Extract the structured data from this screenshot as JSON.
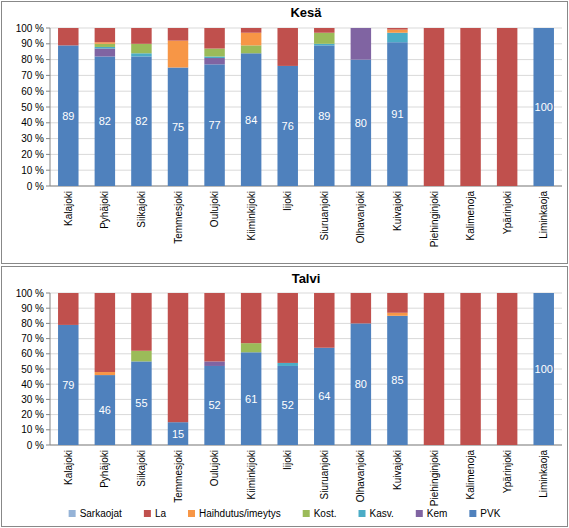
{
  "chart_data": [
    {
      "type": "bar",
      "title": "Kesä",
      "stacked": true,
      "grid": true,
      "categories": [
        "Kalajoki",
        "Pyhäjoki",
        "Siikajoki",
        "Temmesjoki",
        "Oulujoki",
        "Kiiminkijoki",
        "Iijoki",
        "Siuruanjoki",
        "Olhavanjoki",
        "Kuivajoki",
        "Piehinginjoki",
        "Kalimenoja",
        "Ypärinjoki",
        "Liminkaoja"
      ],
      "ylim": [
        0,
        100
      ],
      "yticks": [
        {
          "value": 0,
          "label": "0 %"
        },
        {
          "value": 10,
          "label": "10 %"
        },
        {
          "value": 20,
          "label": "20 %"
        },
        {
          "value": 30,
          "label": "30 %"
        },
        {
          "value": 40,
          "label": "40 %"
        },
        {
          "value": 50,
          "label": "50 %"
        },
        {
          "value": 60,
          "label": "60 %"
        },
        {
          "value": 70,
          "label": "70 %"
        },
        {
          "value": 80,
          "label": "80 %"
        },
        {
          "value": 90,
          "label": "90 %"
        },
        {
          "value": 100,
          "label": "100 %"
        }
      ],
      "series": [
        {
          "name": "Sarkaojat",
          "color": "#95b3d7",
          "values": [
            0,
            0,
            0,
            0,
            0,
            0,
            0,
            0,
            0,
            0,
            0,
            0,
            0,
            0
          ]
        },
        {
          "name": "La",
          "color": "#c0504d",
          "values": [
            11,
            9,
            10,
            8,
            13,
            3,
            24,
            3,
            0,
            1,
            100,
            100,
            100,
            0
          ]
        },
        {
          "name": "Haihdutus/imeytys",
          "color": "#f79646",
          "values": [
            0,
            1,
            0,
            17,
            0,
            8,
            0,
            0,
            0,
            2,
            0,
            0,
            0,
            0
          ]
        },
        {
          "name": "Kost.",
          "color": "#9bbb59",
          "values": [
            0,
            2,
            6,
            0,
            5,
            5,
            0,
            7,
            0,
            0,
            0,
            0,
            0,
            0
          ]
        },
        {
          "name": "Kasv.",
          "color": "#4bacc6",
          "values": [
            0,
            1,
            2,
            0,
            1,
            0,
            0,
            1,
            0,
            6,
            0,
            0,
            0,
            0
          ]
        },
        {
          "name": "Kem",
          "color": "#8064a2",
          "values": [
            0,
            5,
            0,
            0,
            4,
            0,
            0,
            0,
            20,
            0,
            0,
            0,
            0,
            0
          ]
        },
        {
          "name": "PVK",
          "color": "#4f81bd",
          "data_labels": true,
          "values": [
            89,
            82,
            82,
            75,
            77,
            84,
            76,
            89,
            80,
            91,
            0,
            0,
            0,
            100
          ]
        }
      ]
    },
    {
      "type": "bar",
      "title": "Talvi",
      "stacked": true,
      "grid": true,
      "legend": "bottom",
      "categories": [
        "Kalajoki",
        "Pyhäjoki",
        "Siikajoki",
        "Temmesjoki",
        "Oulujoki",
        "Kiiminkijoki",
        "Iijoki",
        "Siuruanjoki",
        "Olhavanjoki",
        "Kuivajoki",
        "Piehinginjoki",
        "Kalimenoja",
        "Ypärinjoki",
        "Liminkaoja"
      ],
      "ylim": [
        0,
        100
      ],
      "yticks": [
        {
          "value": 0,
          "label": "0 %"
        },
        {
          "value": 10,
          "label": "10 %"
        },
        {
          "value": 20,
          "label": "20 %"
        },
        {
          "value": 30,
          "label": "30 %"
        },
        {
          "value": 40,
          "label": "40 %"
        },
        {
          "value": 50,
          "label": "50 %"
        },
        {
          "value": 60,
          "label": "60 %"
        },
        {
          "value": 70,
          "label": "70 %"
        },
        {
          "value": 80,
          "label": "80 %"
        },
        {
          "value": 90,
          "label": "90 %"
        },
        {
          "value": 100,
          "label": "100 %"
        }
      ],
      "series": [
        {
          "name": "Sarkaojat",
          "color": "#95b3d7",
          "values": [
            0,
            0,
            0,
            0,
            0,
            0,
            0,
            0,
            0,
            0,
            0,
            0,
            0,
            0
          ]
        },
        {
          "name": "La",
          "color": "#c0504d",
          "values": [
            21,
            52,
            38,
            85,
            45,
            33,
            46,
            36,
            20,
            13,
            100,
            100,
            100,
            0
          ]
        },
        {
          "name": "Haihdutus/imeytys",
          "color": "#f79646",
          "values": [
            0,
            2,
            0,
            0,
            0,
            0,
            0,
            0,
            0,
            2,
            0,
            0,
            0,
            0
          ]
        },
        {
          "name": "Kost.",
          "color": "#9bbb59",
          "values": [
            0,
            0,
            7,
            0,
            0,
            6,
            0,
            0,
            0,
            0,
            0,
            0,
            0,
            0
          ]
        },
        {
          "name": "Kasv.",
          "color": "#4bacc6",
          "values": [
            0,
            0,
            0,
            0,
            0,
            0,
            2,
            0,
            0,
            0,
            0,
            0,
            0,
            0
          ]
        },
        {
          "name": "Kem",
          "color": "#8064a2",
          "values": [
            0,
            0,
            0,
            0,
            3,
            0,
            0,
            0,
            0,
            0,
            0,
            0,
            0,
            0
          ]
        },
        {
          "name": "PVK",
          "color": "#4f81bd",
          "data_labels": true,
          "values": [
            79,
            46,
            55,
            15,
            52,
            61,
            52,
            64,
            80,
            85,
            0,
            0,
            0,
            100
          ]
        }
      ]
    }
  ]
}
